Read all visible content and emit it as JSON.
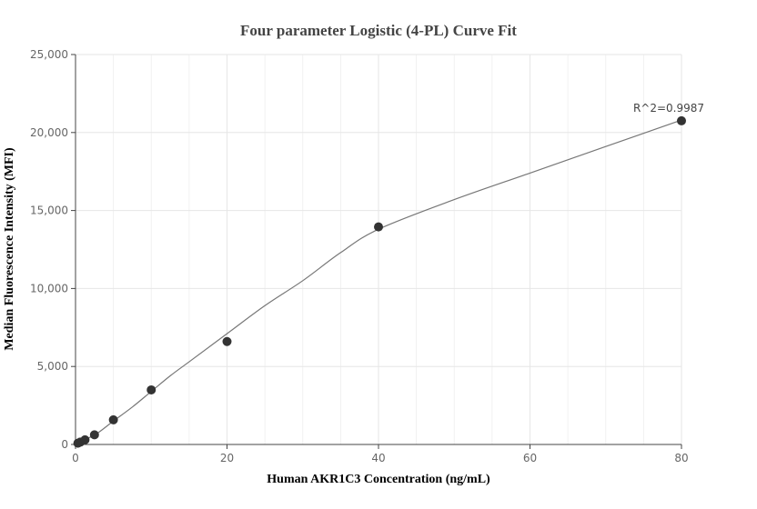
{
  "chart_data": {
    "type": "scatter",
    "title": "Four parameter Logistic (4-PL) Curve Fit",
    "xlabel": "Human AKR1C3 Concentration (ng/mL)",
    "ylabel": "Median Fluorescence Intensity (MFI)",
    "xlim": [
      0,
      80
    ],
    "ylim": [
      0,
      25000
    ],
    "x_ticks": [
      0,
      20,
      40,
      60,
      80
    ],
    "x_tick_labels": [
      "0",
      "20",
      "40",
      "60",
      "80"
    ],
    "y_ticks": [
      0,
      5000,
      10000,
      15000,
      20000,
      25000
    ],
    "y_tick_labels": [
      "0",
      "5,000",
      "10,000",
      "15,000",
      "20,000",
      "25,000"
    ],
    "grid": true,
    "series": [
      {
        "type": "scatter",
        "x": [
          0.3125,
          0.625,
          1.25,
          2.5,
          5,
          10,
          20,
          40,
          80
        ],
        "y": [
          80,
          150,
          300,
          620,
          1580,
          3500,
          6600,
          13950,
          20750
        ],
        "color": "#333333"
      }
    ],
    "fit_curve": {
      "model": "4-PL",
      "color": "#777777",
      "x": [
        0,
        2.5,
        5,
        7.5,
        10,
        12.5,
        15,
        20,
        25,
        30,
        35,
        40,
        50,
        60,
        70,
        80
      ],
      "y": [
        100,
        600,
        1500,
        2400,
        3400,
        4400,
        5300,
        7100,
        8900,
        10500,
        12300,
        13800,
        15700,
        17400,
        19100,
        20800
      ]
    },
    "annotation": {
      "text": "R^2=0.9987",
      "x": 80,
      "y": 20750
    }
  }
}
